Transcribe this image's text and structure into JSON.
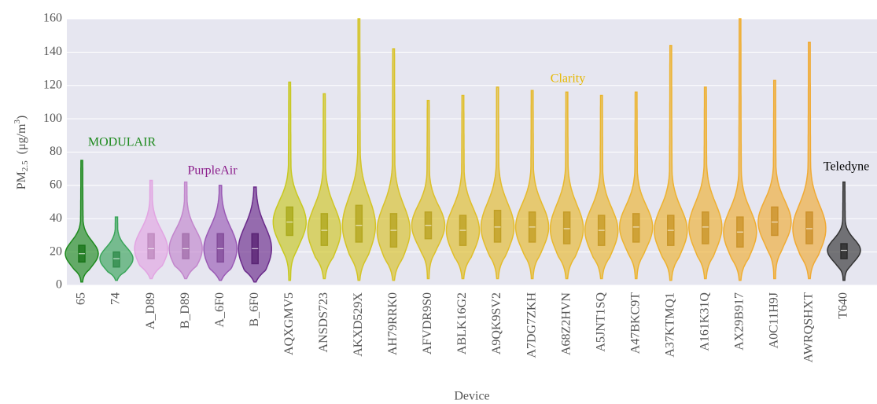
{
  "chart_data": {
    "type": "violin",
    "x_label": "Device",
    "y_label": [
      "PM",
      "2.5",
      "(μg/m",
      "3",
      ")"
    ],
    "ylim": [
      0,
      160
    ],
    "yticks": [
      0,
      20,
      40,
      60,
      80,
      100,
      120,
      140,
      160
    ],
    "grid": true,
    "categories": [
      "65",
      "74",
      "A_D89",
      "B_D89",
      "A_6F0",
      "B_6F0",
      "AQXGMV5",
      "ANSDS723",
      "AKXD529X",
      "AH79RRK0",
      "AFVDR9S0",
      "ABLK16G2",
      "A9QK9SV2",
      "A7DG7ZKH",
      "A68Z2HVN",
      "A5JNT1SQ",
      "A47BKC9T",
      "A37KTMQ1",
      "A161K31Q",
      "AX29B917",
      "A0C11H9J",
      "AWRQSHXT",
      "T640"
    ],
    "colors": [
      "#1e8a1e",
      "#3aa55a",
      "#e2a4e2",
      "#c286cc",
      "#9a5ab5",
      "#6a2a8a",
      "#c8c820",
      "#cfc624",
      "#d4c426",
      "#d8c228",
      "#dcc02a",
      "#e0be2a",
      "#e3bc2c",
      "#e6ba2c",
      "#e8b82e",
      "#eab62e",
      "#ecb430",
      "#edb230",
      "#eeb032",
      "#efae32",
      "#f0ac34",
      "#f0aa34",
      "#333333"
    ],
    "min": [
      2,
      3,
      4,
      4,
      3,
      2,
      3,
      4,
      3,
      3,
      4,
      4,
      4,
      4,
      4,
      4,
      4,
      3,
      4,
      3,
      4,
      4,
      3
    ],
    "q1": [
      14,
      11,
      16,
      16,
      14,
      13,
      30,
      24,
      26,
      23,
      28,
      24,
      26,
      26,
      25,
      24,
      26,
      24,
      25,
      23,
      30,
      25,
      16
    ],
    "median": [
      19,
      16,
      22,
      22,
      22,
      22,
      38,
      33,
      36,
      33,
      36,
      33,
      35,
      35,
      34,
      33,
      35,
      33,
      35,
      32,
      38,
      34,
      21
    ],
    "q3": [
      24,
      20,
      31,
      31,
      31,
      31,
      47,
      43,
      48,
      43,
      44,
      42,
      45,
      44,
      44,
      42,
      43,
      42,
      44,
      41,
      47,
      44,
      25
    ],
    "max": [
      75,
      41,
      63,
      62,
      60,
      59,
      122,
      115,
      160,
      142,
      111,
      114,
      119,
      117,
      116,
      114,
      116,
      144,
      119,
      160,
      123,
      146,
      62
    ],
    "annotations": [
      "MODULAIR",
      "PurpleAir",
      "Clarity",
      "Teledyne"
    ]
  }
}
